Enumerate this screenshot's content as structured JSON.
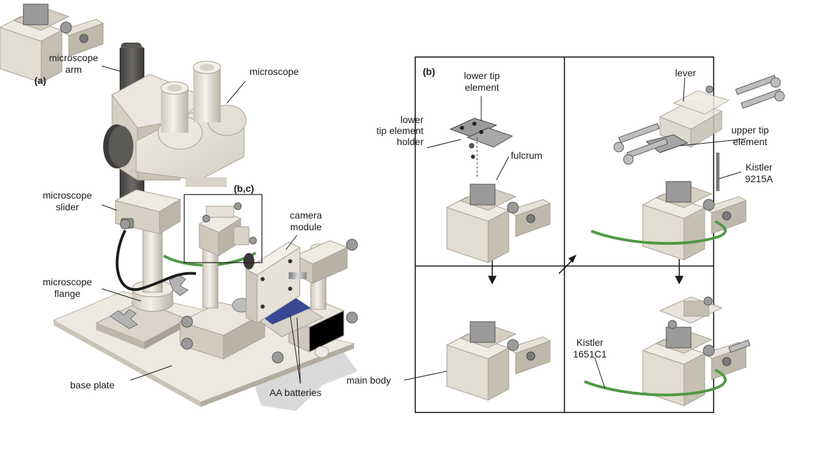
{
  "panel_a": {
    "tag": "(a)",
    "inset_tag": "(b,c)",
    "labels": {
      "microscope_arm": [
        "microscope",
        "arm"
      ],
      "microscope": "microscope",
      "microscope_slider": [
        "microscope",
        "slider"
      ],
      "microscope_flange": [
        "microscope",
        "flange"
      ],
      "base_plate": "base plate",
      "camera_module": [
        "camera",
        "module"
      ],
      "aa_batteries": "AA batteries"
    }
  },
  "panel_b": {
    "tag": "(b)",
    "labels": {
      "lower_tip_element": [
        "lower tip",
        "element"
      ],
      "lower_tip_element_holder": [
        "lower",
        "tip",
        "element",
        "holder"
      ],
      "fulcrum": "fulcrum",
      "lever": "lever",
      "upper_tip_element": [
        "upper tip",
        "element"
      ],
      "kistler_9215a": [
        "Kistler",
        "9215A"
      ],
      "kistler_1651c1": [
        "Kistler",
        "1651C1"
      ],
      "main_body": "main body"
    }
  },
  "colors": {
    "part_light": "#e9e5da",
    "part_mid": "#cfc9bb",
    "part_dark": "#a8a295",
    "arm_gray": "#55534f",
    "metal": "#9a9a9a",
    "cable_green": "#4f9a44",
    "cable_black": "#1c1c1c",
    "battery_blue": "#3a4794",
    "line": "#1a1a1a"
  }
}
